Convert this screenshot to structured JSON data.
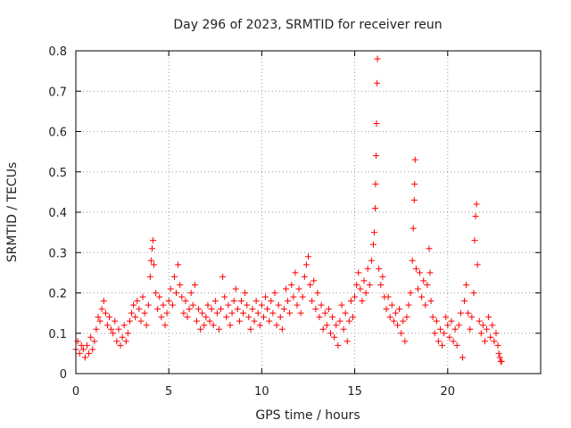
{
  "chart_data": {
    "type": "scatter",
    "title": "Day 296 of 2023, SRMTID for receiver reun",
    "xlabel": "GPS time / hours",
    "ylabel": "SRMTID / TECUs",
    "xlim": [
      0,
      25
    ],
    "ylim": [
      0,
      0.8
    ],
    "xticks": [
      0,
      5,
      10,
      15,
      20
    ],
    "yticks": [
      0,
      0.1,
      0.2,
      0.3,
      0.4,
      0.5,
      0.6,
      0.7,
      0.8
    ],
    "grid": true,
    "marker": "+",
    "color": "#ff0000",
    "series": [
      {
        "name": "reun",
        "points": [
          [
            0.0,
            0.06
          ],
          [
            0.1,
            0.08
          ],
          [
            0.2,
            0.05
          ],
          [
            0.3,
            0.07
          ],
          [
            0.4,
            0.06
          ],
          [
            0.5,
            0.04
          ],
          [
            0.6,
            0.07
          ],
          [
            0.7,
            0.05
          ],
          [
            0.8,
            0.09
          ],
          [
            0.9,
            0.06
          ],
          [
            1.0,
            0.08
          ],
          [
            1.1,
            0.11
          ],
          [
            1.2,
            0.14
          ],
          [
            1.3,
            0.13
          ],
          [
            1.4,
            0.16
          ],
          [
            1.5,
            0.18
          ],
          [
            1.6,
            0.15
          ],
          [
            1.7,
            0.12
          ],
          [
            1.8,
            0.14
          ],
          [
            1.9,
            0.11
          ],
          [
            2.0,
            0.1
          ],
          [
            2.1,
            0.13
          ],
          [
            2.2,
            0.08
          ],
          [
            2.3,
            0.11
          ],
          [
            2.4,
            0.07
          ],
          [
            2.5,
            0.09
          ],
          [
            2.6,
            0.12
          ],
          [
            2.7,
            0.08
          ],
          [
            2.8,
            0.1
          ],
          [
            2.9,
            0.13
          ],
          [
            3.0,
            0.15
          ],
          [
            3.1,
            0.17
          ],
          [
            3.2,
            0.14
          ],
          [
            3.3,
            0.18
          ],
          [
            3.4,
            0.16
          ],
          [
            3.5,
            0.13
          ],
          [
            3.6,
            0.19
          ],
          [
            3.7,
            0.15
          ],
          [
            3.8,
            0.12
          ],
          [
            3.9,
            0.17
          ],
          [
            4.0,
            0.24
          ],
          [
            4.05,
            0.28
          ],
          [
            4.1,
            0.31
          ],
          [
            4.15,
            0.33
          ],
          [
            4.2,
            0.27
          ],
          [
            4.3,
            0.2
          ],
          [
            4.4,
            0.16
          ],
          [
            4.5,
            0.19
          ],
          [
            4.6,
            0.14
          ],
          [
            4.7,
            0.17
          ],
          [
            4.8,
            0.12
          ],
          [
            4.9,
            0.15
          ],
          [
            5.0,
            0.18
          ],
          [
            5.1,
            0.21
          ],
          [
            5.2,
            0.17
          ],
          [
            5.3,
            0.24
          ],
          [
            5.4,
            0.2
          ],
          [
            5.5,
            0.27
          ],
          [
            5.6,
            0.22
          ],
          [
            5.7,
            0.19
          ],
          [
            5.8,
            0.15
          ],
          [
            5.9,
            0.18
          ],
          [
            6.0,
            0.14
          ],
          [
            6.1,
            0.16
          ],
          [
            6.2,
            0.2
          ],
          [
            6.3,
            0.17
          ],
          [
            6.4,
            0.22
          ],
          [
            6.5,
            0.13
          ],
          [
            6.6,
            0.16
          ],
          [
            6.7,
            0.11
          ],
          [
            6.8,
            0.15
          ],
          [
            6.9,
            0.12
          ],
          [
            7.0,
            0.14
          ],
          [
            7.1,
            0.17
          ],
          [
            7.2,
            0.13
          ],
          [
            7.3,
            0.16
          ],
          [
            7.4,
            0.12
          ],
          [
            7.5,
            0.18
          ],
          [
            7.6,
            0.15
          ],
          [
            7.7,
            0.11
          ],
          [
            7.8,
            0.16
          ],
          [
            7.9,
            0.24
          ],
          [
            8.0,
            0.19
          ],
          [
            8.1,
            0.14
          ],
          [
            8.2,
            0.17
          ],
          [
            8.3,
            0.12
          ],
          [
            8.4,
            0.15
          ],
          [
            8.5,
            0.18
          ],
          [
            8.6,
            0.21
          ],
          [
            8.7,
            0.16
          ],
          [
            8.8,
            0.13
          ],
          [
            8.9,
            0.18
          ],
          [
            9.0,
            0.15
          ],
          [
            9.1,
            0.2
          ],
          [
            9.2,
            0.17
          ],
          [
            9.3,
            0.14
          ],
          [
            9.4,
            0.11
          ],
          [
            9.5,
            0.16
          ],
          [
            9.6,
            0.13
          ],
          [
            9.7,
            0.18
          ],
          [
            9.8,
            0.15
          ],
          [
            9.9,
            0.12
          ],
          [
            10.0,
            0.17
          ],
          [
            10.1,
            0.14
          ],
          [
            10.2,
            0.19
          ],
          [
            10.3,
            0.16
          ],
          [
            10.4,
            0.13
          ],
          [
            10.5,
            0.18
          ],
          [
            10.6,
            0.15
          ],
          [
            10.7,
            0.2
          ],
          [
            10.8,
            0.12
          ],
          [
            10.9,
            0.17
          ],
          [
            11.0,
            0.14
          ],
          [
            11.1,
            0.11
          ],
          [
            11.2,
            0.16
          ],
          [
            11.3,
            0.21
          ],
          [
            11.4,
            0.18
          ],
          [
            11.5,
            0.15
          ],
          [
            11.6,
            0.22
          ],
          [
            11.7,
            0.19
          ],
          [
            11.8,
            0.25
          ],
          [
            11.9,
            0.17
          ],
          [
            12.0,
            0.21
          ],
          [
            12.1,
            0.15
          ],
          [
            12.2,
            0.19
          ],
          [
            12.3,
            0.24
          ],
          [
            12.4,
            0.27
          ],
          [
            12.5,
            0.29
          ],
          [
            12.6,
            0.22
          ],
          [
            12.7,
            0.18
          ],
          [
            12.8,
            0.23
          ],
          [
            12.9,
            0.16
          ],
          [
            13.0,
            0.2
          ],
          [
            13.1,
            0.14
          ],
          [
            13.2,
            0.17
          ],
          [
            13.3,
            0.11
          ],
          [
            13.4,
            0.15
          ],
          [
            13.5,
            0.12
          ],
          [
            13.6,
            0.16
          ],
          [
            13.7,
            0.1
          ],
          [
            13.8,
            0.14
          ],
          [
            13.9,
            0.09
          ],
          [
            14.0,
            0.12
          ],
          [
            14.1,
            0.07
          ],
          [
            14.2,
            0.13
          ],
          [
            14.3,
            0.17
          ],
          [
            14.4,
            0.11
          ],
          [
            14.5,
            0.15
          ],
          [
            14.6,
            0.08
          ],
          [
            14.7,
            0.13
          ],
          [
            14.8,
            0.18
          ],
          [
            14.9,
            0.14
          ],
          [
            15.0,
            0.19
          ],
          [
            15.1,
            0.22
          ],
          [
            15.2,
            0.25
          ],
          [
            15.3,
            0.21
          ],
          [
            15.4,
            0.18
          ],
          [
            15.5,
            0.23
          ],
          [
            15.6,
            0.2
          ],
          [
            15.7,
            0.26
          ],
          [
            15.8,
            0.22
          ],
          [
            15.9,
            0.28
          ],
          [
            16.0,
            0.32
          ],
          [
            16.05,
            0.35
          ],
          [
            16.1,
            0.41
          ],
          [
            16.12,
            0.47
          ],
          [
            16.15,
            0.54
          ],
          [
            16.17,
            0.62
          ],
          [
            16.2,
            0.72
          ],
          [
            16.22,
            0.78
          ],
          [
            16.3,
            0.26
          ],
          [
            16.4,
            0.22
          ],
          [
            16.5,
            0.24
          ],
          [
            16.6,
            0.19
          ],
          [
            16.7,
            0.16
          ],
          [
            16.8,
            0.19
          ],
          [
            16.9,
            0.14
          ],
          [
            17.0,
            0.17
          ],
          [
            17.1,
            0.13
          ],
          [
            17.2,
            0.15
          ],
          [
            17.3,
            0.12
          ],
          [
            17.4,
            0.16
          ],
          [
            17.5,
            0.1
          ],
          [
            17.6,
            0.13
          ],
          [
            17.7,
            0.08
          ],
          [
            17.8,
            0.14
          ],
          [
            17.9,
            0.17
          ],
          [
            18.0,
            0.2
          ],
          [
            18.1,
            0.28
          ],
          [
            18.15,
            0.36
          ],
          [
            18.2,
            0.43
          ],
          [
            18.22,
            0.47
          ],
          [
            18.25,
            0.53
          ],
          [
            18.3,
            0.26
          ],
          [
            18.4,
            0.21
          ],
          [
            18.5,
            0.25
          ],
          [
            18.6,
            0.19
          ],
          [
            18.7,
            0.23
          ],
          [
            18.8,
            0.17
          ],
          [
            18.9,
            0.22
          ],
          [
            19.0,
            0.31
          ],
          [
            19.05,
            0.25
          ],
          [
            19.1,
            0.18
          ],
          [
            19.2,
            0.14
          ],
          [
            19.3,
            0.1
          ],
          [
            19.4,
            0.13
          ],
          [
            19.5,
            0.08
          ],
          [
            19.6,
            0.11
          ],
          [
            19.7,
            0.07
          ],
          [
            19.8,
            0.1
          ],
          [
            19.9,
            0.14
          ],
          [
            20.0,
            0.12
          ],
          [
            20.1,
            0.09
          ],
          [
            20.2,
            0.13
          ],
          [
            20.3,
            0.08
          ],
          [
            20.4,
            0.11
          ],
          [
            20.5,
            0.07
          ],
          [
            20.6,
            0.12
          ],
          [
            20.7,
            0.15
          ],
          [
            20.8,
            0.04
          ],
          [
            20.9,
            0.18
          ],
          [
            21.0,
            0.22
          ],
          [
            21.1,
            0.15
          ],
          [
            21.2,
            0.11
          ],
          [
            21.3,
            0.14
          ],
          [
            21.4,
            0.2
          ],
          [
            21.45,
            0.33
          ],
          [
            21.5,
            0.39
          ],
          [
            21.55,
            0.42
          ],
          [
            21.6,
            0.27
          ],
          [
            21.7,
            0.13
          ],
          [
            21.8,
            0.1
          ],
          [
            21.9,
            0.12
          ],
          [
            22.0,
            0.08
          ],
          [
            22.1,
            0.11
          ],
          [
            22.2,
            0.14
          ],
          [
            22.3,
            0.09
          ],
          [
            22.4,
            0.12
          ],
          [
            22.5,
            0.08
          ],
          [
            22.6,
            0.1
          ],
          [
            22.7,
            0.07
          ],
          [
            22.75,
            0.05
          ],
          [
            22.8,
            0.04
          ],
          [
            22.85,
            0.03
          ],
          [
            22.9,
            0.03
          ]
        ]
      }
    ]
  }
}
